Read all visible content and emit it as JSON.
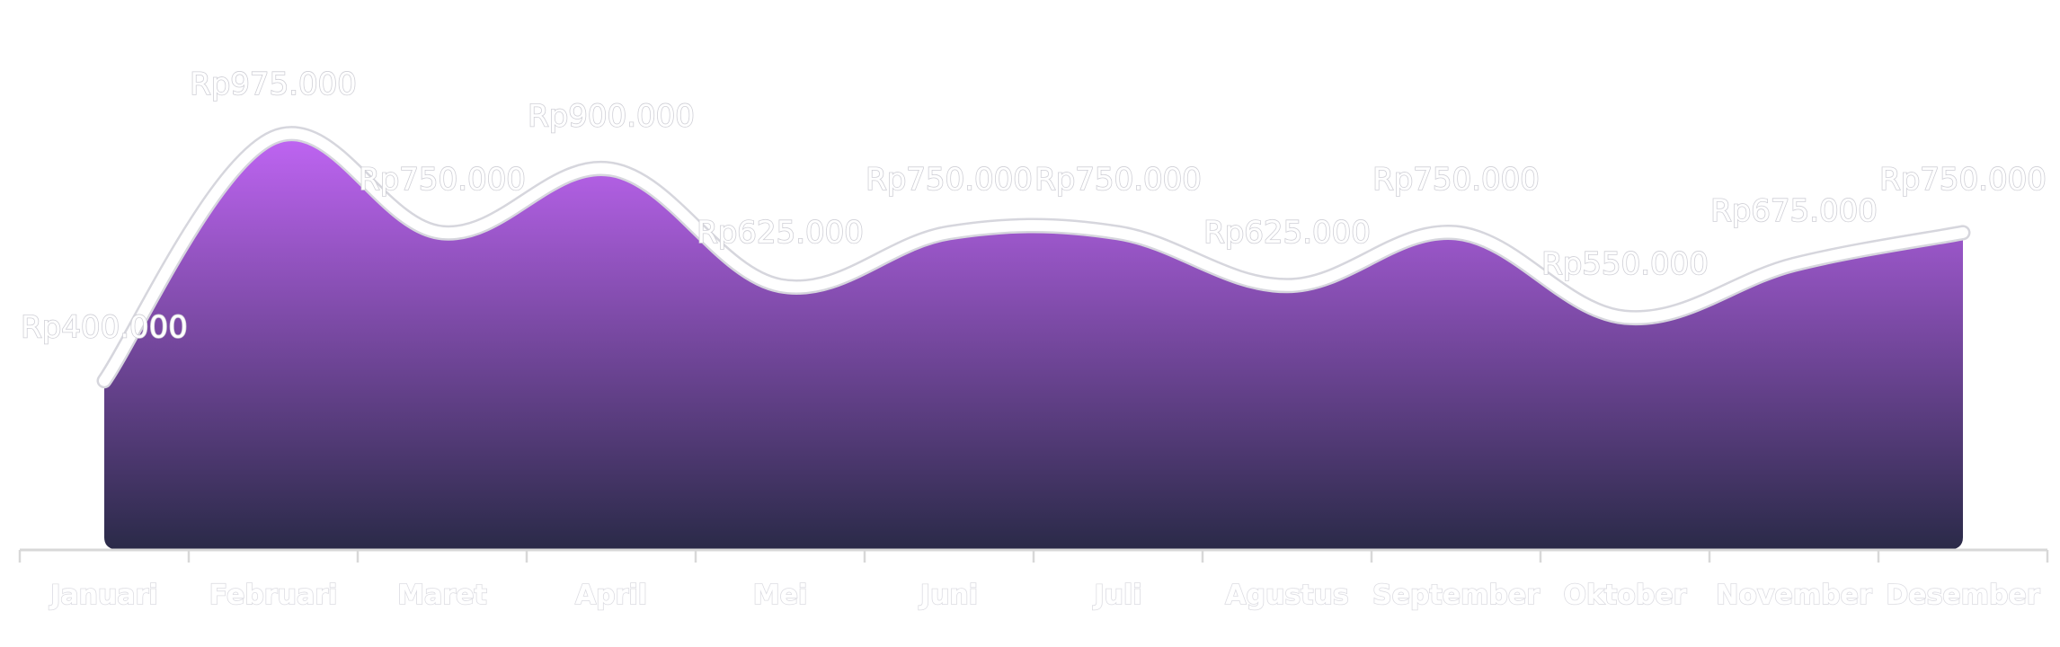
{
  "chart_data": {
    "type": "area",
    "categories": [
      "Januari",
      "Februari",
      "Maret",
      "April",
      "Mei",
      "Juni",
      "Juli",
      "Agustus",
      "September",
      "Oktober",
      "November",
      "Desember"
    ],
    "values": [
      400000,
      975000,
      750000,
      900000,
      625000,
      750000,
      750000,
      625000,
      750000,
      550000,
      675000,
      750000
    ],
    "labels": [
      "Rp400.000",
      "Rp975.000",
      "Rp750.000",
      "Rp900.000",
      "Rp625.000",
      "Rp750.000",
      "Rp750.000",
      "Rp625.000",
      "Rp750.000",
      "Rp550.000",
      "Rp675.000",
      "Rp750.000"
    ],
    "ylim": [
      0,
      1300000
    ],
    "grid": false,
    "legend": "none",
    "colors": {
      "area_top": "#c065f4",
      "area_bottom": "#2a2a48",
      "line": "#ffffff",
      "line_outline": "#d6d6dd",
      "axis": "#d8d8d8"
    }
  }
}
